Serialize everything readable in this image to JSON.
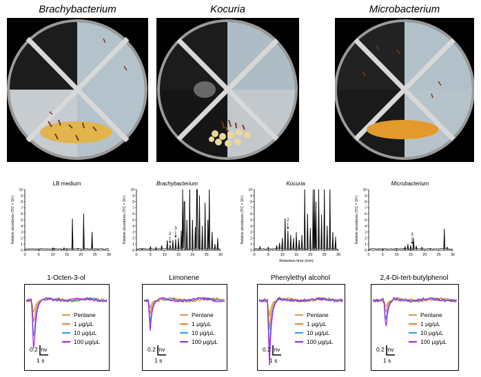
{
  "photos": [
    {
      "title": "Brachybacterium"
    },
    {
      "title": "Kocuria"
    },
    {
      "title": "Microbacterium"
    }
  ],
  "chart_data": [
    {
      "type": "line",
      "title": "LB medium",
      "ylabel": "Relative abundance (TIC × 10⁵)",
      "xlabel": "",
      "x_ticks": [
        0,
        5,
        10,
        15,
        20,
        25,
        30
      ],
      "y_ticks": [
        0,
        1,
        2,
        3,
        4,
        5,
        6,
        7,
        8,
        9,
        10
      ],
      "xlim": [
        0,
        30
      ],
      "ylim": [
        0,
        10
      ],
      "peaks": [
        [
          5,
          0.2
        ],
        [
          10,
          0.4
        ],
        [
          10.5,
          0.3
        ],
        [
          13,
          0.2
        ],
        [
          14,
          0.4
        ],
        [
          15,
          0.2
        ],
        [
          17,
          5.2
        ],
        [
          19,
          0.3
        ],
        [
          21,
          6
        ],
        [
          24,
          3
        ],
        [
          26,
          0.2
        ]
      ],
      "annotations": []
    },
    {
      "type": "line",
      "title": "Brachybacterium",
      "ylabel": "Relative abundance (TIC × 10⁵)",
      "xlabel": "",
      "x_ticks": [
        0,
        5,
        10,
        15,
        20,
        25,
        30
      ],
      "y_ticks": [
        0,
        1,
        2,
        3,
        4,
        5,
        6,
        7,
        8,
        9,
        10
      ],
      "xlim": [
        0,
        30
      ],
      "ylim": [
        0,
        10
      ],
      "peaks": [
        [
          2,
          0.3
        ],
        [
          5,
          0.6
        ],
        [
          7,
          0.5
        ],
        [
          9,
          0.8
        ],
        [
          11,
          1.6
        ],
        [
          12,
          0.9
        ],
        [
          13,
          1.6
        ],
        [
          14,
          1.8
        ],
        [
          15,
          2
        ],
        [
          16,
          3.2
        ],
        [
          16.5,
          10
        ],
        [
          17.2,
          8
        ],
        [
          18,
          5
        ],
        [
          19,
          10
        ],
        [
          20,
          5
        ],
        [
          21,
          3.8
        ],
        [
          21.6,
          10
        ],
        [
          22.5,
          9
        ],
        [
          23.5,
          4
        ],
        [
          24.5,
          7.8
        ],
        [
          25.5,
          5
        ],
        [
          26,
          10
        ],
        [
          27,
          3
        ],
        [
          28,
          1
        ],
        [
          29,
          2
        ]
      ],
      "annotations": [
        {
          "label": "2",
          "x": 12
        },
        {
          "label": "3",
          "x": 14
        }
      ]
    },
    {
      "type": "line",
      "title": "Kocuria",
      "ylabel": "Relative abundance (TIC × 10⁵)",
      "xlabel": "Retention time (min)",
      "x_ticks": [
        0,
        5,
        10,
        15,
        20,
        25,
        30
      ],
      "y_ticks": [
        0,
        1,
        2,
        3,
        4,
        5,
        6,
        7,
        8,
        9,
        10
      ],
      "xlim": [
        0,
        30
      ],
      "ylim": [
        0,
        10
      ],
      "peaks": [
        [
          2,
          0.6
        ],
        [
          5,
          0.5
        ],
        [
          8,
          0.8
        ],
        [
          9,
          1.2
        ],
        [
          10,
          2
        ],
        [
          11,
          5.2
        ],
        [
          12,
          3.2
        ],
        [
          13,
          2.5
        ],
        [
          14,
          2
        ],
        [
          15,
          3
        ],
        [
          16,
          1.7
        ],
        [
          17,
          2.5
        ],
        [
          18,
          10
        ],
        [
          19,
          6
        ],
        [
          20,
          3.6
        ],
        [
          21,
          10
        ],
        [
          21.5,
          10
        ],
        [
          22,
          8
        ],
        [
          23,
          10
        ],
        [
          24,
          5.8
        ],
        [
          25,
          10
        ],
        [
          26,
          4
        ],
        [
          27,
          10
        ],
        [
          28,
          3
        ],
        [
          29,
          2.2
        ]
      ],
      "annotations": [
        {
          "label": "2",
          "x": 12
        }
      ]
    },
    {
      "type": "line",
      "title": "Microbacterium",
      "ylabel": "Relative abundance (TIC × 10⁵)",
      "xlabel": "",
      "x_ticks": [
        0,
        5,
        10,
        15,
        20,
        25,
        30
      ],
      "y_ticks": [
        0,
        1,
        2,
        3,
        4,
        5,
        6,
        7,
        8,
        9,
        10
      ],
      "xlim": [
        0,
        30
      ],
      "ylim": [
        0,
        10
      ],
      "peaks": [
        [
          5,
          0.3
        ],
        [
          10,
          0.3
        ],
        [
          13,
          0.6
        ],
        [
          14,
          1
        ],
        [
          15,
          0.8
        ],
        [
          16,
          2
        ],
        [
          17,
          0.7
        ],
        [
          19,
          0.5
        ],
        [
          22,
          0.3
        ],
        [
          27,
          3.5
        ],
        [
          28,
          0.5
        ]
      ],
      "annotations": [
        {
          "label": "3",
          "x": 15.5
        }
      ]
    }
  ],
  "eag": [
    {
      "title": "1-Octen-3-ol"
    },
    {
      "title": "Limonene"
    },
    {
      "title": "Phenylethyl alcohol"
    },
    {
      "title": "2,4-Di-tert-butylphenol"
    }
  ],
  "legend": [
    {
      "label": "Pentane",
      "color": "#c8a04a"
    },
    {
      "label": "1 μg/μL",
      "color": "#f07f2a"
    },
    {
      "label": "10 μg/μL",
      "color": "#2a9fd8"
    },
    {
      "label": "100 μg/μL",
      "color": "#a020e0"
    }
  ],
  "scale": {
    "v": "0.2 mv",
    "t": "1 s"
  }
}
